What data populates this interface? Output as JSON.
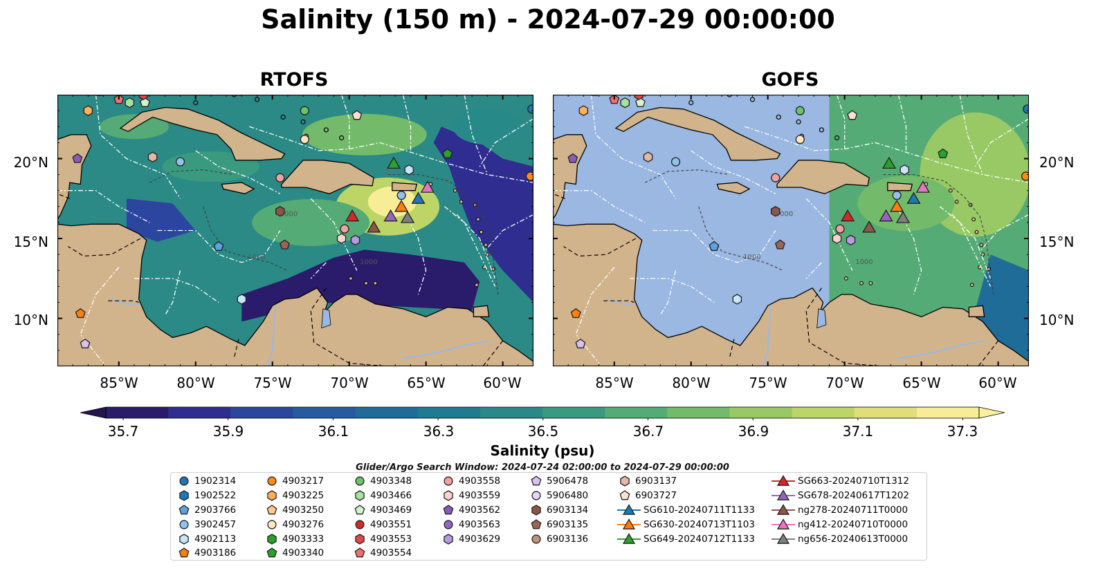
{
  "title": "Salinity (150 m) - 2024-07-29 00:00:00",
  "panels": [
    {
      "title": "RTOFS",
      "field": "variable"
    },
    {
      "title": "GOFS",
      "field": "partial",
      "data_starts_lon": -71
    }
  ],
  "map_extent": {
    "lon": [
      -89,
      -58
    ],
    "lat": [
      7,
      24
    ]
  },
  "lat_labels": [
    "20°N",
    "15°N",
    "10°N"
  ],
  "lon_labels": [
    "85°W",
    "80°W",
    "75°W",
    "70°W",
    "65°W",
    "60°W"
  ],
  "contour_labels": [
    "1000",
    "1000",
    "1000"
  ],
  "colorbar": {
    "ticks": [
      "35.7",
      "35.9",
      "36.1",
      "36.3",
      "36.5",
      "36.7",
      "36.9",
      "37.1",
      "37.3"
    ],
    "label": "Salinity (psu)",
    "colors": [
      "#2a1c6b",
      "#2f2d8f",
      "#2c46a0",
      "#265ba0",
      "#1f6c98",
      "#1e7b90",
      "#288a88",
      "#3a9a80",
      "#55ab75",
      "#73bb6a",
      "#98c965",
      "#bdd466",
      "#e0de78",
      "#f8ed97"
    ]
  },
  "search_window": "Glider/Argo Search Window: 2024-07-24 02:00:00 to 2024-07-29 00:00:00",
  "land_color": "#d2b48c",
  "ocean_mask_color": "#9ab8e1",
  "legend": [
    [
      {
        "label": "1902314",
        "marker": "circle",
        "color": "#1f77b4"
      },
      {
        "label": "1902522",
        "marker": "hexagon",
        "color": "#1f77b4"
      },
      {
        "label": "2903766",
        "marker": "pentagon",
        "color": "#5fa2dd"
      },
      {
        "label": "3902457",
        "marker": "circle",
        "color": "#90c3ec"
      },
      {
        "label": "4902113",
        "marker": "hexagon",
        "color": "#c8e6f8"
      },
      {
        "label": "4903186",
        "marker": "pentagon",
        "color": "#ff7f0e"
      }
    ],
    [
      {
        "label": "4903217",
        "marker": "circle",
        "color": "#ff8c1a"
      },
      {
        "label": "4903225",
        "marker": "hexagon",
        "color": "#ffb05a"
      },
      {
        "label": "4903250",
        "marker": "pentagon",
        "color": "#ffc890"
      },
      {
        "label": "4903276",
        "marker": "circle",
        "color": "#ffe6c4"
      },
      {
        "label": "4903333",
        "marker": "hexagon",
        "color": "#2ca02c"
      },
      {
        "label": "4903340",
        "marker": "pentagon",
        "color": "#2ca02c"
      }
    ],
    [
      {
        "label": "4903348",
        "marker": "circle",
        "color": "#6ac36a"
      },
      {
        "label": "4903466",
        "marker": "hexagon",
        "color": "#a8e2a0"
      },
      {
        "label": "4903469",
        "marker": "pentagon",
        "color": "#d4f2cc"
      },
      {
        "label": "4903551",
        "marker": "circle",
        "color": "#d62728"
      },
      {
        "label": "4903553",
        "marker": "hexagon",
        "color": "#e0474a"
      },
      {
        "label": "4903554",
        "marker": "pentagon",
        "color": "#f07070"
      }
    ],
    [
      {
        "label": "4903558",
        "marker": "circle",
        "color": "#f4a0a0"
      },
      {
        "label": "4903559",
        "marker": "hexagon",
        "color": "#fbd2d2"
      },
      {
        "label": "4903562",
        "marker": "pentagon",
        "color": "#8a5ab8"
      },
      {
        "label": "4903563",
        "marker": "circle",
        "color": "#9467bd"
      },
      {
        "label": "4903629",
        "marker": "hexagon",
        "color": "#b89ae0"
      }
    ],
    [
      {
        "label": "5906478",
        "marker": "pentagon",
        "color": "#d8c2f0"
      },
      {
        "label": "5906480",
        "marker": "circle",
        "color": "#e6d6f8"
      },
      {
        "label": "6903134",
        "marker": "hexagon",
        "color": "#8c564b"
      },
      {
        "label": "6903135",
        "marker": "pentagon",
        "color": "#9b6457"
      },
      {
        "label": "6903136",
        "marker": "circle",
        "color": "#c4917f"
      }
    ],
    [
      {
        "label": "6903137",
        "marker": "hexagon",
        "color": "#e2b8a6"
      },
      {
        "label": "6903727",
        "marker": "pentagon",
        "color": "#fde0d6"
      },
      {
        "label": "SG610-20240711T1133",
        "marker": "triangle-line",
        "color": "#1f77b4"
      },
      {
        "label": "SG630-20240713T1103",
        "marker": "triangle-line",
        "color": "#ff7f0e"
      },
      {
        "label": "SG649-20240712T1133",
        "marker": "triangle-line",
        "color": "#2ca02c"
      }
    ],
    [
      {
        "label": "SG663-20240710T1312",
        "marker": "triangle-line",
        "color": "#d62728"
      },
      {
        "label": "SG678-20240617T1202",
        "marker": "triangle-line",
        "color": "#9467bd"
      },
      {
        "label": "ng278-20240711T0000",
        "marker": "triangle-line",
        "color": "#8c564b"
      },
      {
        "label": "ng412-20240710T0000",
        "marker": "triangle-line",
        "color": "#e377c2"
      },
      {
        "label": "ng656-20240613T0000",
        "marker": "triangle-line",
        "color": "#7f7f7f"
      }
    ]
  ],
  "observations": [
    {
      "id": "1902314",
      "lon": -58.1,
      "lat": 23.1
    },
    {
      "id": "4903217",
      "lon": -58.2,
      "lat": 18.9
    },
    {
      "id": "4903348",
      "lon": -72.9,
      "lat": 23.0
    },
    {
      "id": "4903276",
      "lon": -72.9,
      "lat": 21.2
    },
    {
      "id": "6903727",
      "lon": -69.5,
      "lat": 22.7
    },
    {
      "id": "4903340",
      "lon": -63.6,
      "lat": 20.3
    },
    {
      "id": "4902113",
      "lon": -66.1,
      "lat": 19.3
    },
    {
      "id": "3902457",
      "lon": -66.6,
      "lat": 17.7
    },
    {
      "id": "4903558",
      "lon": -74.5,
      "lat": 18.8
    },
    {
      "id": "3902457",
      "lon": -81.0,
      "lat": 19.8
    },
    {
      "id": "6903137",
      "lon": -82.8,
      "lat": 20.1
    },
    {
      "id": "4903562",
      "lon": -87.7,
      "lat": 20.0
    },
    {
      "id": "4903225",
      "lon": -87.0,
      "lat": 23.0
    },
    {
      "id": "4903466",
      "lon": -84.3,
      "lat": 23.5
    },
    {
      "id": "4903554",
      "lon": -85.0,
      "lat": 23.7
    },
    {
      "id": "4903469",
      "lon": -83.3,
      "lat": 23.5
    },
    {
      "id": "4903553",
      "lon": -83.4,
      "lat": 24.0
    },
    {
      "id": "4903554",
      "lon": -86.3,
      "lat": 24.2
    },
    {
      "id": "6903134",
      "lon": -74.5,
      "lat": 16.7
    },
    {
      "id": "6903135",
      "lon": -74.2,
      "lat": 14.6
    },
    {
      "id": "4903558",
      "lon": -70.3,
      "lat": 15.6
    },
    {
      "id": "4903559",
      "lon": -70.5,
      "lat": 15.0
    },
    {
      "id": "4903629",
      "lon": -69.6,
      "lat": 14.9
    },
    {
      "id": "2903766",
      "lon": -78.5,
      "lat": 14.5
    },
    {
      "id": "4902113",
      "lon": -77.0,
      "lat": 11.2
    },
    {
      "id": "4903186",
      "lon": -87.5,
      "lat": 10.3
    },
    {
      "id": "5906478",
      "lon": -87.2,
      "lat": 8.4
    }
  ],
  "gliders": [
    {
      "id": "SG649-20240712T1133",
      "lon": -67.1,
      "lat": 19.7
    },
    {
      "id": "SG630-20240713T1103",
      "lon": -66.6,
      "lat": 17.0
    },
    {
      "id": "SG610-20240711T1133",
      "lon": -65.5,
      "lat": 17.5
    },
    {
      "id": "ng412-20240710T0000",
      "lon": -64.9,
      "lat": 18.2
    },
    {
      "id": "SG663-20240710T1312",
      "lon": -69.8,
      "lat": 16.4
    },
    {
      "id": "SG678-20240617T1202",
      "lon": -67.3,
      "lat": 16.4
    },
    {
      "id": "ng656-20240613T0000",
      "lon": -66.2,
      "lat": 16.3
    },
    {
      "id": "ng278-20240711T0000",
      "lon": -68.4,
      "lat": 15.7
    }
  ]
}
